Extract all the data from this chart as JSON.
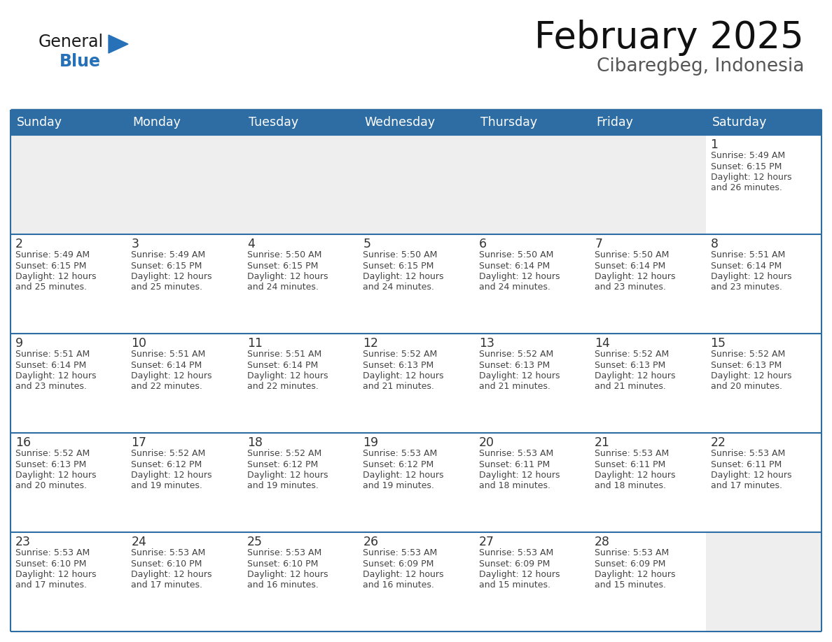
{
  "title": "February 2025",
  "subtitle": "Cibaregbeg, Indonesia",
  "header_bg": "#2E6DA4",
  "header_text_color": "#FFFFFF",
  "cell_bg_empty": "#EEEEEE",
  "cell_bg_filled": "#FFFFFF",
  "border_color": "#2E6DA4",
  "text_color": "#444444",
  "day_num_color": "#333333",
  "days_of_week": [
    "Sunday",
    "Monday",
    "Tuesday",
    "Wednesday",
    "Thursday",
    "Friday",
    "Saturday"
  ],
  "logo_general_color": "#1a1a1a",
  "logo_blue_color": "#2771b8",
  "calendar_data": [
    [
      null,
      null,
      null,
      null,
      null,
      null,
      {
        "day": 1,
        "sunrise": "5:49 AM",
        "sunset": "6:15 PM",
        "daylight": "12 hours\nand 26 minutes."
      }
    ],
    [
      {
        "day": 2,
        "sunrise": "5:49 AM",
        "sunset": "6:15 PM",
        "daylight": "12 hours\nand 25 minutes."
      },
      {
        "day": 3,
        "sunrise": "5:49 AM",
        "sunset": "6:15 PM",
        "daylight": "12 hours\nand 25 minutes."
      },
      {
        "day": 4,
        "sunrise": "5:50 AM",
        "sunset": "6:15 PM",
        "daylight": "12 hours\nand 24 minutes."
      },
      {
        "day": 5,
        "sunrise": "5:50 AM",
        "sunset": "6:15 PM",
        "daylight": "12 hours\nand 24 minutes."
      },
      {
        "day": 6,
        "sunrise": "5:50 AM",
        "sunset": "6:14 PM",
        "daylight": "12 hours\nand 24 minutes."
      },
      {
        "day": 7,
        "sunrise": "5:50 AM",
        "sunset": "6:14 PM",
        "daylight": "12 hours\nand 23 minutes."
      },
      {
        "day": 8,
        "sunrise": "5:51 AM",
        "sunset": "6:14 PM",
        "daylight": "12 hours\nand 23 minutes."
      }
    ],
    [
      {
        "day": 9,
        "sunrise": "5:51 AM",
        "sunset": "6:14 PM",
        "daylight": "12 hours\nand 23 minutes."
      },
      {
        "day": 10,
        "sunrise": "5:51 AM",
        "sunset": "6:14 PM",
        "daylight": "12 hours\nand 22 minutes."
      },
      {
        "day": 11,
        "sunrise": "5:51 AM",
        "sunset": "6:14 PM",
        "daylight": "12 hours\nand 22 minutes."
      },
      {
        "day": 12,
        "sunrise": "5:52 AM",
        "sunset": "6:13 PM",
        "daylight": "12 hours\nand 21 minutes."
      },
      {
        "day": 13,
        "sunrise": "5:52 AM",
        "sunset": "6:13 PM",
        "daylight": "12 hours\nand 21 minutes."
      },
      {
        "day": 14,
        "sunrise": "5:52 AM",
        "sunset": "6:13 PM",
        "daylight": "12 hours\nand 21 minutes."
      },
      {
        "day": 15,
        "sunrise": "5:52 AM",
        "sunset": "6:13 PM",
        "daylight": "12 hours\nand 20 minutes."
      }
    ],
    [
      {
        "day": 16,
        "sunrise": "5:52 AM",
        "sunset": "6:13 PM",
        "daylight": "12 hours\nand 20 minutes."
      },
      {
        "day": 17,
        "sunrise": "5:52 AM",
        "sunset": "6:12 PM",
        "daylight": "12 hours\nand 19 minutes."
      },
      {
        "day": 18,
        "sunrise": "5:52 AM",
        "sunset": "6:12 PM",
        "daylight": "12 hours\nand 19 minutes."
      },
      {
        "day": 19,
        "sunrise": "5:53 AM",
        "sunset": "6:12 PM",
        "daylight": "12 hours\nand 19 minutes."
      },
      {
        "day": 20,
        "sunrise": "5:53 AM",
        "sunset": "6:11 PM",
        "daylight": "12 hours\nand 18 minutes."
      },
      {
        "day": 21,
        "sunrise": "5:53 AM",
        "sunset": "6:11 PM",
        "daylight": "12 hours\nand 18 minutes."
      },
      {
        "day": 22,
        "sunrise": "5:53 AM",
        "sunset": "6:11 PM",
        "daylight": "12 hours\nand 17 minutes."
      }
    ],
    [
      {
        "day": 23,
        "sunrise": "5:53 AM",
        "sunset": "6:10 PM",
        "daylight": "12 hours\nand 17 minutes."
      },
      {
        "day": 24,
        "sunrise": "5:53 AM",
        "sunset": "6:10 PM",
        "daylight": "12 hours\nand 17 minutes."
      },
      {
        "day": 25,
        "sunrise": "5:53 AM",
        "sunset": "6:10 PM",
        "daylight": "12 hours\nand 16 minutes."
      },
      {
        "day": 26,
        "sunrise": "5:53 AM",
        "sunset": "6:09 PM",
        "daylight": "12 hours\nand 16 minutes."
      },
      {
        "day": 27,
        "sunrise": "5:53 AM",
        "sunset": "6:09 PM",
        "daylight": "12 hours\nand 15 minutes."
      },
      {
        "day": 28,
        "sunrise": "5:53 AM",
        "sunset": "6:09 PM",
        "daylight": "12 hours\nand 15 minutes."
      },
      null
    ]
  ]
}
